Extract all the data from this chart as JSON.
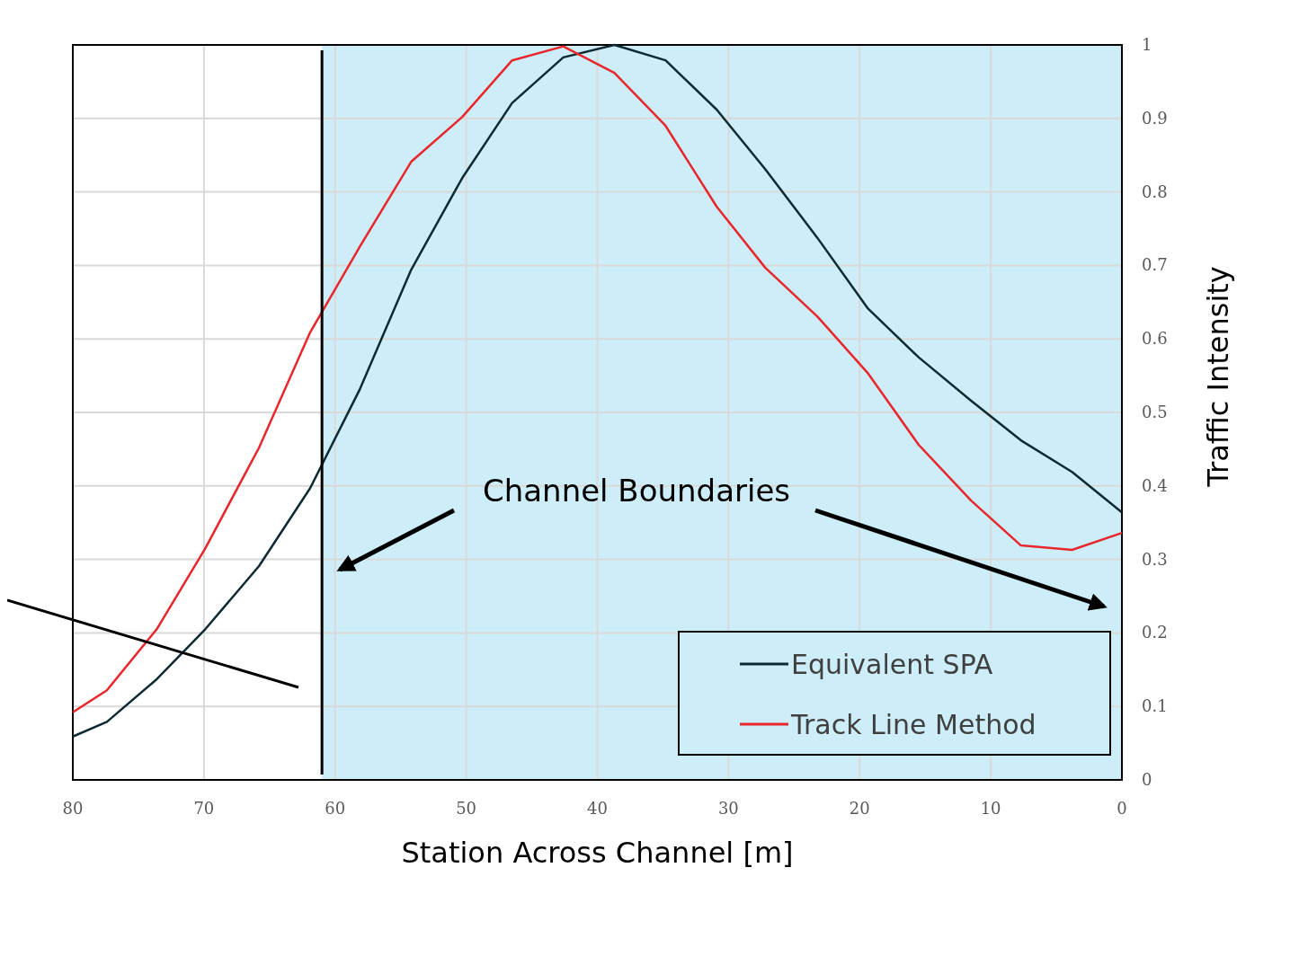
{
  "chart_data": {
    "type": "line",
    "xlabel": "Station Across Channel [m]",
    "ylabel": "Traffic Intensity",
    "x": [
      80,
      77.4,
      73.6,
      69.9,
      65.8,
      61.9,
      58.1,
      54.2,
      50.3,
      46.5,
      42.6,
      38.7,
      34.8,
      30.9,
      27.2,
      23.2,
      19.4,
      15.5,
      11.5,
      7.7,
      3.8,
      0
    ],
    "series": [
      {
        "name": "Equivalent SPA",
        "color": "#0d2a33",
        "values": [
          0.059,
          0.079,
          0.137,
          0.205,
          0.291,
          0.397,
          0.532,
          0.694,
          0.819,
          0.921,
          0.983,
          1.0,
          0.979,
          0.912,
          0.831,
          0.737,
          0.642,
          0.575,
          0.516,
          0.462,
          0.419,
          0.364
        ]
      },
      {
        "name": "Track Line Method",
        "color": "#e8262b",
        "values": [
          0.092,
          0.122,
          0.205,
          0.315,
          0.452,
          0.609,
          0.726,
          0.841,
          0.902,
          0.979,
          0.998,
          0.962,
          0.89,
          0.78,
          0.697,
          0.63,
          0.554,
          0.456,
          0.38,
          0.319,
          0.313,
          0.336
        ]
      }
    ],
    "xlim": [
      80,
      0
    ],
    "xticks": [
      80,
      70,
      60,
      50,
      40,
      30,
      20,
      10,
      0
    ],
    "ylim": [
      0,
      1
    ],
    "yticks": [
      0,
      0.1,
      0.2,
      0.3,
      0.4,
      0.5,
      0.6,
      0.7,
      0.8,
      0.9,
      1
    ],
    "grid": true,
    "legend": "bottom right",
    "bands": [
      {
        "axis": "x",
        "from": 61,
        "to": 0,
        "color": "#cdeef9"
      }
    ],
    "ref_lines": [
      {
        "axis": "x",
        "value": 61,
        "color": "#000000"
      }
    ],
    "annotations": [
      "Channel Boundaries"
    ]
  }
}
